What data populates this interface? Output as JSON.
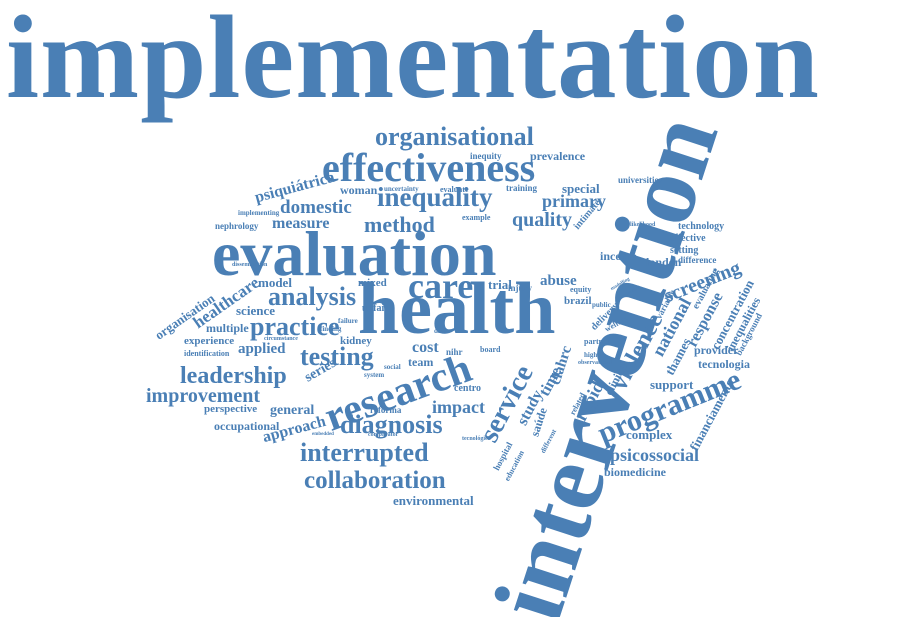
{
  "color": "#4a7fb5",
  "headline": "implementation",
  "words": {
    "health": "health",
    "evaluation": "evaluation",
    "intervention": "intervention",
    "effectiveness": "effectiveness",
    "research": "research",
    "care": "care",
    "organisational": "organisational",
    "inequality": "inequality",
    "method": "method",
    "quality": "quality",
    "primary": "primary",
    "measure": "measure",
    "domestic": "domestic",
    "psiquiatrica": "psiquiátrica",
    "woman": "woman",
    "prevalence": "prevalence",
    "inequity": "inequity",
    "training": "training",
    "special": "special",
    "universities": "universities",
    "technology": "technology",
    "effective": "effective",
    "setting": "setting",
    "london": "london",
    "income": "income",
    "screening": "screening",
    "difference": "difference",
    "analysis": "analysis",
    "model": "model",
    "practice": "practice",
    "science": "science",
    "testing": "testing",
    "applied": "applied",
    "multiple": "multiple",
    "experience": "experience",
    "leadership": "leadership",
    "improvement": "improvement",
    "series": "series",
    "perspective": "perspective",
    "general": "general",
    "occupational": "occupational",
    "approach": "approach",
    "diagnosis": "diagnosis",
    "impact": "impact",
    "interrupted": "interrupted",
    "collaboration": "collaboration",
    "environmental": "environmental",
    "cost": "cost",
    "team": "team",
    "service": "service",
    "study": "study",
    "time": "time",
    "abuse": "abuse",
    "trial": "trial",
    "mixed": "mixed",
    "unfair": "unfair",
    "kidney": "kidney",
    "brazil": "brazil",
    "violence": "violence",
    "national": "national",
    "programme": "programme",
    "rapid": "rapid",
    "clinical": "clinical",
    "complex": "complex",
    "psicossocial": "psicossocial",
    "biomedicine": "biomedicine",
    "financiamento": "financiamento",
    "support": "support",
    "provider": "provider",
    "tecnologia": "tecnologia",
    "inequalities": "inequalities",
    "concentration": "concentration",
    "response": "response",
    "healthcare": "healthcare",
    "organisation": "organisation",
    "nephrology": "nephrology",
    "implementing": "implementing",
    "centro": "centro",
    "saude": "saúde",
    "reforma": "reforma",
    "nihr": "nihr",
    "board": "board",
    "clahrc": "clahrc",
    "equity": "equity",
    "injury": "injury",
    "identification": "identification",
    "evaluate": "evaluate",
    "uncertainty": "uncertainty",
    "example": "example",
    "intimate": "intimate",
    "public": "public",
    "welfare": "welfare",
    "partner": "partner",
    "delivery": "delivery",
    "higher": "higher",
    "observational": "observational",
    "related": "related",
    "thames": "thames",
    "evaluating": "evaluating",
    "variable": "variable",
    "background": "background",
    "system": "system",
    "social": "social",
    "circumstance": "circumstance",
    "failure": "failure",
    "finding": "finding",
    "data": "data",
    "hospital": "hospital",
    "education": "education",
    "different": "different",
    "comparator": "comparator",
    "tecnologica": "tecnológica",
    "embedded": "embedded",
    "likelihood": "likelihood",
    "regression": "regression",
    "modelling": "modelling",
    "dissemination": "dissemination"
  }
}
